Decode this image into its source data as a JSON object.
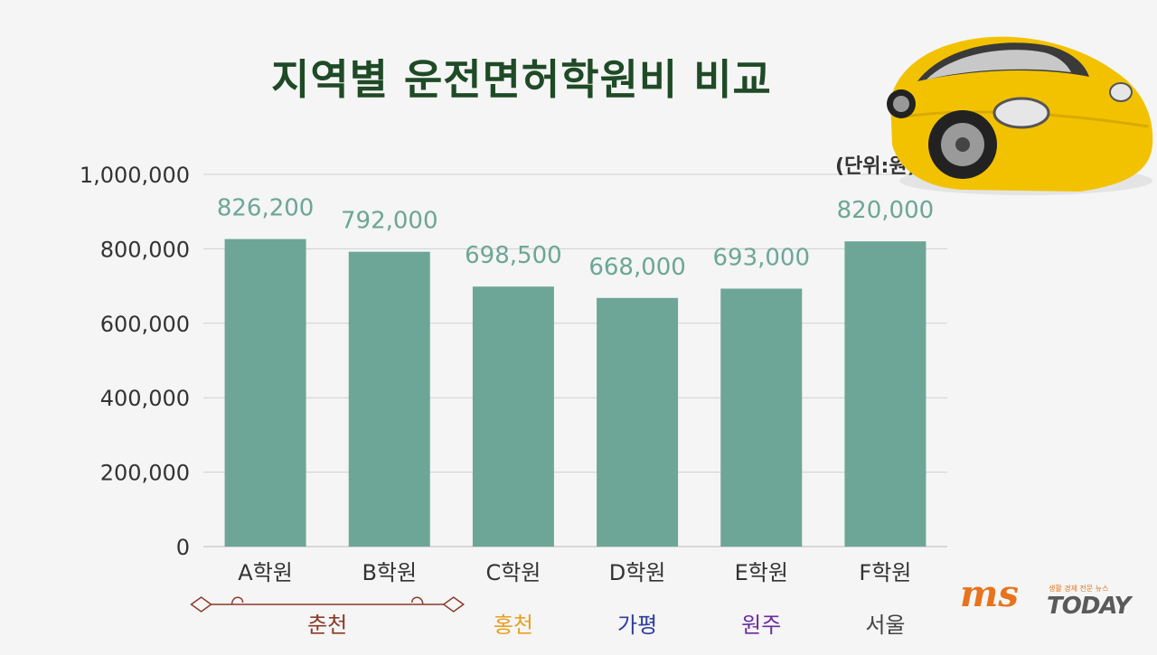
{
  "title": "지역별 운전면허학원비 비교",
  "unit": "(단위:원)",
  "logo": {
    "mark": "ms",
    "name": "TODAY",
    "tagline": "생활 경제 전문 뉴스"
  },
  "chart_data": {
    "type": "bar",
    "categories": [
      "A학원",
      "B학원",
      "C학원",
      "D학원",
      "E학원",
      "F학원"
    ],
    "values": [
      826200,
      792000,
      698500,
      668000,
      693000,
      820000
    ],
    "value_labels": [
      "826,200",
      "792,000",
      "698,500",
      "668,000",
      "693,000",
      "820,000"
    ],
    "ylim": [
      0,
      1000000
    ],
    "yticks": [
      0,
      200000,
      400000,
      600000,
      800000,
      1000000
    ],
    "ytick_labels": [
      "0",
      "200,000",
      "400,000",
      "600,000",
      "800,000",
      "1,000,000"
    ],
    "grid": true,
    "region_groups": [
      {
        "label": "춘천",
        "from": 0,
        "to": 1,
        "color": "#8b3a2a"
      },
      {
        "label": "홍천",
        "from": 2,
        "to": 2,
        "color": "#e8a020"
      },
      {
        "label": "가평",
        "from": 3,
        "to": 3,
        "color": "#2e3d9e"
      },
      {
        "label": "원주",
        "from": 4,
        "to": 4,
        "color": "#6a2aa0"
      },
      {
        "label": "서울",
        "from": 5,
        "to": 5,
        "color": "#444444"
      }
    ],
    "colors": {
      "bar": "#6da696",
      "value_label": "#6da696",
      "axis_text": "#333333",
      "grid": "#d0d0d0"
    }
  }
}
